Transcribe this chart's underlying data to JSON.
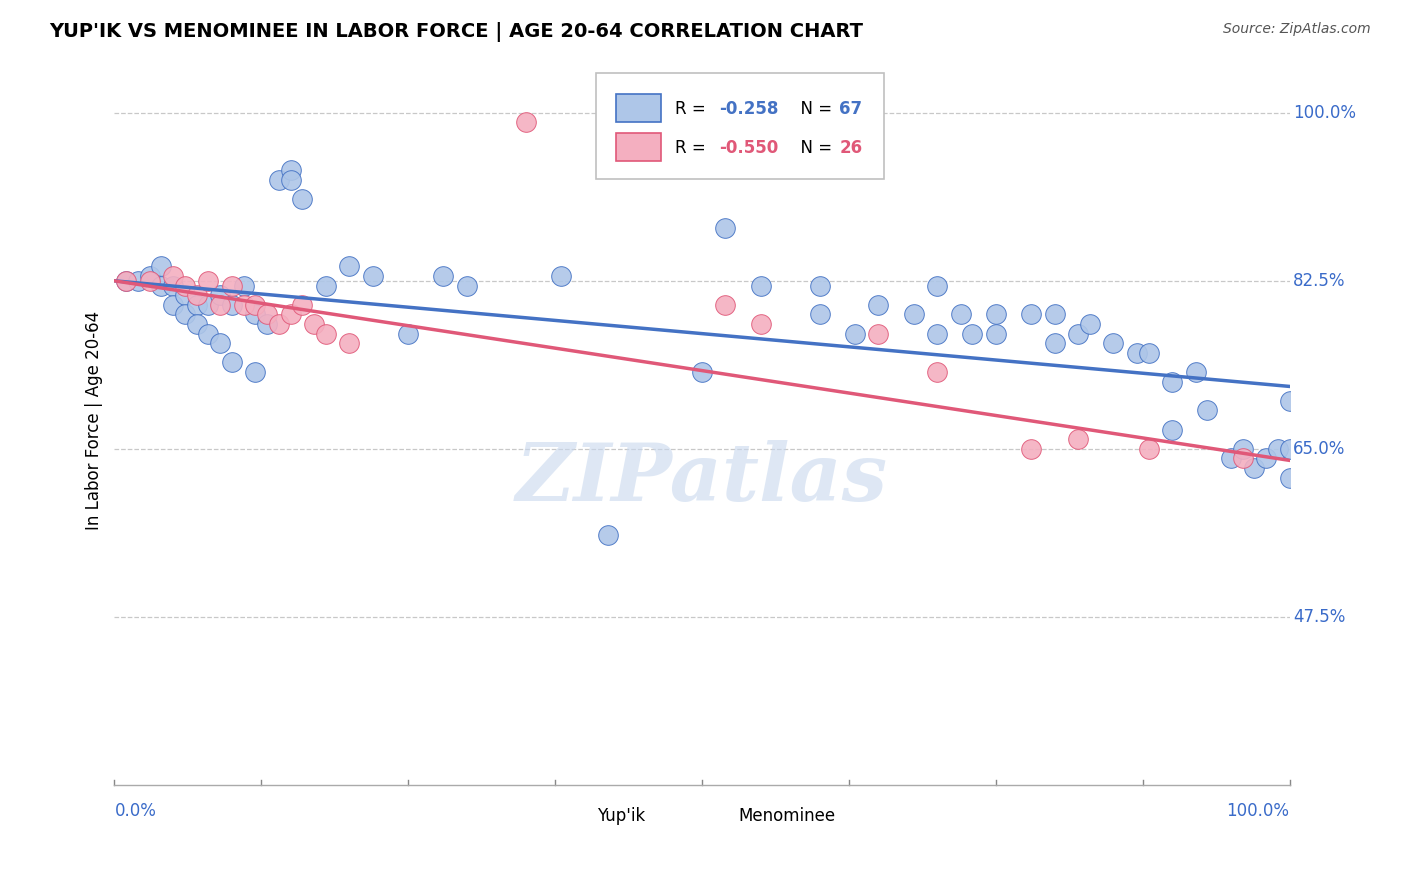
{
  "title": "YUP'IK VS MENOMINEE IN LABOR FORCE | AGE 20-64 CORRELATION CHART",
  "source": "Source: ZipAtlas.com",
  "ylabel": "In Labor Force | Age 20-64",
  "ytick_labels": [
    "100.0%",
    "82.5%",
    "65.0%",
    "47.5%"
  ],
  "ytick_values": [
    1.0,
    0.825,
    0.65,
    0.475
  ],
  "xlim": [
    0.0,
    1.0
  ],
  "ylim": [
    0.3,
    1.06
  ],
  "watermark": "ZIPatlas",
  "yupik_color": "#aec6e8",
  "menominee_color": "#f4afc0",
  "trend_yupik_color": "#4472c4",
  "trend_menominee_color": "#e05878",
  "grid_color": "#c8c8c8",
  "background_color": "#ffffff",
  "yupik_x": [
    0.01,
    0.02,
    0.03,
    0.04,
    0.04,
    0.05,
    0.05,
    0.06,
    0.06,
    0.07,
    0.07,
    0.08,
    0.08,
    0.09,
    0.09,
    0.1,
    0.11,
    0.12,
    0.13,
    0.14,
    0.15,
    0.15,
    0.16,
    0.2,
    0.25,
    0.28,
    0.38,
    0.5,
    0.52,
    0.55,
    0.6,
    0.63,
    0.65,
    0.68,
    0.7,
    0.72,
    0.75,
    0.75,
    0.78,
    0.8,
    0.82,
    0.83,
    0.85,
    0.87,
    0.88,
    0.9,
    0.92,
    0.93,
    0.95,
    0.96,
    0.97,
    0.98,
    0.99,
    1.0,
    1.0,
    1.0,
    0.1,
    0.12,
    0.18,
    0.22,
    0.3,
    0.42,
    0.6,
    0.7,
    0.73,
    0.8,
    0.9
  ],
  "yupik_y": [
    0.825,
    0.825,
    0.83,
    0.84,
    0.82,
    0.82,
    0.8,
    0.81,
    0.79,
    0.8,
    0.78,
    0.8,
    0.77,
    0.81,
    0.76,
    0.8,
    0.82,
    0.79,
    0.78,
    0.93,
    0.94,
    0.93,
    0.91,
    0.84,
    0.77,
    0.83,
    0.83,
    0.73,
    0.88,
    0.82,
    0.79,
    0.77,
    0.8,
    0.79,
    0.82,
    0.79,
    0.79,
    0.77,
    0.79,
    0.76,
    0.77,
    0.78,
    0.76,
    0.75,
    0.75,
    0.67,
    0.73,
    0.69,
    0.64,
    0.65,
    0.63,
    0.64,
    0.65,
    0.7,
    0.65,
    0.62,
    0.74,
    0.73,
    0.82,
    0.83,
    0.82,
    0.56,
    0.82,
    0.77,
    0.77,
    0.79,
    0.72
  ],
  "menominee_x": [
    0.01,
    0.03,
    0.05,
    0.06,
    0.07,
    0.08,
    0.09,
    0.1,
    0.11,
    0.12,
    0.13,
    0.14,
    0.15,
    0.16,
    0.17,
    0.18,
    0.2,
    0.35,
    0.52,
    0.55,
    0.65,
    0.7,
    0.78,
    0.82,
    0.88,
    0.96
  ],
  "menominee_y": [
    0.825,
    0.825,
    0.83,
    0.82,
    0.81,
    0.825,
    0.8,
    0.82,
    0.8,
    0.8,
    0.79,
    0.78,
    0.79,
    0.8,
    0.78,
    0.77,
    0.76,
    0.99,
    0.8,
    0.78,
    0.77,
    0.73,
    0.65,
    0.66,
    0.65,
    0.64
  ],
  "trend_yupik_start": 0.825,
  "trend_yupik_end": 0.715,
  "trend_menominee_start": 0.825,
  "trend_menominee_end": 0.638
}
